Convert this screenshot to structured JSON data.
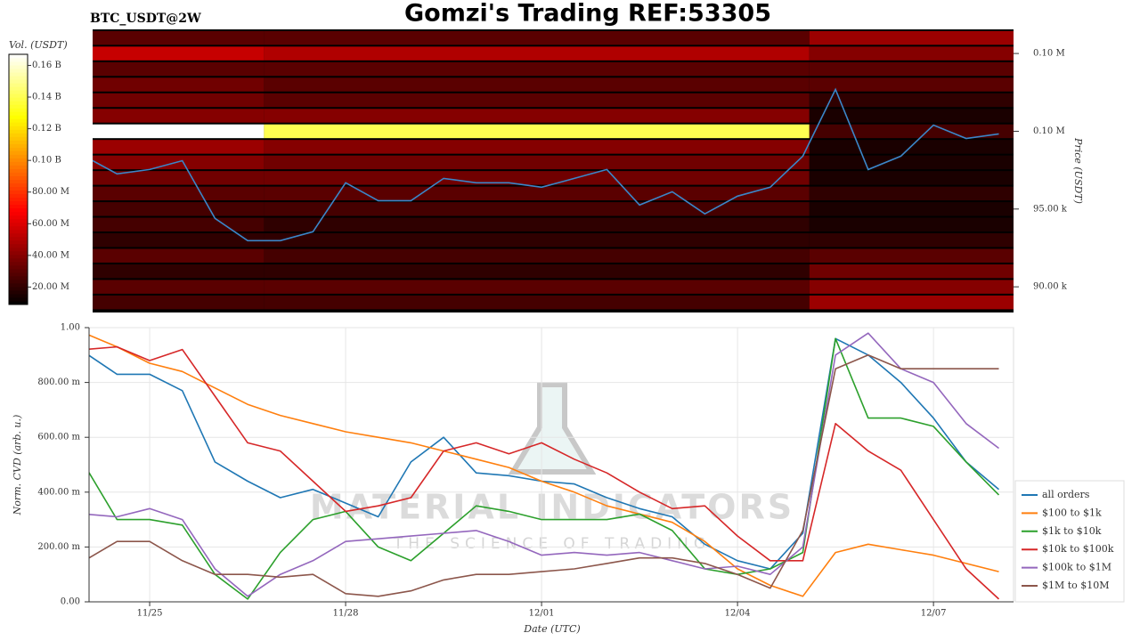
{
  "header": {
    "title": "Gomzi's Trading REF:53305",
    "symbol": "BTC_USDT@2W"
  },
  "watermark": {
    "name": "MATERIAL INDICATORS",
    "tagline": "THE SCIENCE OF TRADING"
  },
  "chart_data": [
    {
      "type": "heatmap",
      "y_label": "Price (USDT)",
      "colorbar_label": "Vol. (USDT)",
      "categories": [
        null,
        null,
        null,
        null,
        null,
        null,
        null,
        null,
        null,
        null,
        null,
        null,
        null,
        null,
        null,
        null,
        null,
        null,
        null,
        null,
        null,
        null,
        null,
        null,
        null,
        null,
        null,
        null,
        null
      ],
      "ylim": [
        88350,
        106550
      ],
      "yticks": [
        {
          "value": 90000,
          "label": "90.00 k"
        },
        {
          "value": 95000,
          "label": "95.00 k"
        },
        {
          "value": 100000,
          "label": "0.10 M"
        },
        {
          "value": 105000,
          "label": "0.10 M"
        }
      ],
      "y_bins": [
        88500,
        89500,
        90500,
        91500,
        92500,
        93500,
        94500,
        95500,
        96500,
        97500,
        98500,
        99500,
        100500,
        101500,
        102500,
        103500,
        104500,
        105500,
        106500
      ],
      "x_bins": [
        0,
        5.5,
        22.2,
        28.5
      ],
      "z": [
        [
          25000000,
          25000000,
          45000000
        ],
        [
          30000000,
          30000000,
          40000000
        ],
        [
          20000000,
          20000000,
          35000000
        ],
        [
          30000000,
          25000000,
          30000000
        ],
        [
          20000000,
          20000000,
          20000000
        ],
        [
          25000000,
          20000000,
          15000000
        ],
        [
          25000000,
          25000000,
          15000000
        ],
        [
          30000000,
          30000000,
          20000000
        ],
        [
          35000000,
          35000000,
          15000000
        ],
        [
          40000000,
          35000000,
          15000000
        ],
        [
          45000000,
          40000000,
          15000000
        ],
        [
          167000000,
          140000000,
          25000000
        ],
        [
          40000000,
          40000000,
          15000000
        ],
        [
          35000000,
          30000000,
          20000000
        ],
        [
          35000000,
          30000000,
          30000000
        ],
        [
          30000000,
          30000000,
          30000000
        ],
        [
          55000000,
          50000000,
          40000000
        ],
        [
          30000000,
          30000000,
          45000000
        ]
      ],
      "zlim": [
        9000000,
        167000000
      ],
      "zticks": [
        {
          "value": 20000000,
          "label": "20.00 M"
        },
        {
          "value": 40000000,
          "label": "40.00 M"
        },
        {
          "value": 60000000,
          "label": "60.00 M"
        },
        {
          "value": 80000000,
          "label": "80.00 M"
        },
        {
          "value": 100000000,
          "label": "0.10 B"
        },
        {
          "value": 120000000,
          "label": "0.12 B"
        },
        {
          "value": 140000000,
          "label": "0.14 B"
        },
        {
          "value": 160000000,
          "label": "0.16 B"
        }
      ],
      "line": {
        "color": "#3b86c8",
        "values": [
          98400,
          97260,
          97540,
          98110,
          94400,
          92970,
          92970,
          93540,
          96690,
          95540,
          95540,
          96970,
          96690,
          96690,
          96400,
          96970,
          97540,
          95260,
          96110,
          94690,
          95830,
          96400,
          98400,
          102690,
          97540,
          98400,
          100400,
          99540,
          99830
        ]
      }
    },
    {
      "type": "line",
      "y_label": "Norm. CVD (arb. u.)",
      "x_label": "Date (UTC)",
      "categories": [
        null,
        null,
        "11/25",
        null,
        null,
        null,
        null,
        null,
        "11/28",
        null,
        null,
        null,
        null,
        null,
        "12/01",
        null,
        null,
        null,
        null,
        null,
        "12/04",
        null,
        null,
        null,
        null,
        null,
        "12/07",
        null,
        null
      ],
      "ylim": [
        0,
        1
      ],
      "yticks": [
        {
          "value": 0,
          "label": "0.00"
        },
        {
          "value": 0.2,
          "label": "200.00 m"
        },
        {
          "value": 0.4,
          "label": "400.00 m"
        },
        {
          "value": 0.6,
          "label": "600.00 m"
        },
        {
          "value": 0.8,
          "label": "800.00 m"
        },
        {
          "value": 1,
          "label": "1.00"
        }
      ],
      "grid": true,
      "legend": "right",
      "series": [
        {
          "name": "all orders",
          "color": "#1f77b4",
          "values": [
            0.91,
            0.83,
            0.83,
            0.77,
            0.51,
            0.44,
            0.38,
            0.41,
            0.36,
            0.31,
            0.51,
            0.6,
            0.47,
            0.46,
            0.44,
            0.43,
            0.38,
            0.34,
            0.31,
            0.21,
            0.15,
            0.12,
            0.25,
            0.96,
            0.9,
            0.8,
            0.67,
            0.51,
            0.41
          ]
        },
        {
          "name": "$100 to $1k",
          "color": "#ff7f0e",
          "values": [
            0.98,
            0.93,
            0.87,
            0.84,
            0.78,
            0.72,
            0.68,
            0.65,
            0.62,
            0.6,
            0.58,
            0.55,
            0.52,
            0.49,
            0.44,
            0.4,
            0.35,
            0.32,
            0.29,
            0.22,
            0.12,
            0.06,
            0.02,
            0.18,
            0.21,
            0.19,
            0.17,
            0.14,
            0.11
          ]
        },
        {
          "name": "$1k to $10k",
          "color": "#2ca02c",
          "values": [
            0.5,
            0.3,
            0.3,
            0.28,
            0.1,
            0.01,
            0.18,
            0.3,
            0.33,
            0.2,
            0.15,
            0.25,
            0.35,
            0.33,
            0.3,
            0.3,
            0.3,
            0.32,
            0.26,
            0.12,
            0.1,
            0.12,
            0.18,
            0.96,
            0.67,
            0.67,
            0.64,
            0.51,
            0.39
          ]
        },
        {
          "name": "$10k to $100k",
          "color": "#d62728",
          "values": [
            0.92,
            0.93,
            0.88,
            0.92,
            0.75,
            0.58,
            0.55,
            0.44,
            0.33,
            0.35,
            0.38,
            0.55,
            0.58,
            0.54,
            0.58,
            0.52,
            0.47,
            0.4,
            0.34,
            0.35,
            0.24,
            0.15,
            0.15,
            0.65,
            0.55,
            0.48,
            0.3,
            0.12,
            0.01
          ]
        },
        {
          "name": "$100k to $1M",
          "color": "#9467bd",
          "values": [
            0.32,
            0.31,
            0.34,
            0.3,
            0.12,
            0.02,
            0.1,
            0.15,
            0.22,
            0.23,
            0.24,
            0.25,
            0.26,
            0.22,
            0.17,
            0.18,
            0.17,
            0.18,
            0.15,
            0.12,
            0.13,
            0.1,
            0.2,
            0.9,
            0.98,
            0.85,
            0.8,
            0.65,
            0.56
          ]
        },
        {
          "name": "$1M to $10M",
          "color": "#8c564b",
          "values": [
            0.15,
            0.22,
            0.22,
            0.15,
            0.1,
            0.1,
            0.09,
            0.1,
            0.03,
            0.02,
            0.04,
            0.08,
            0.1,
            0.1,
            0.11,
            0.12,
            0.14,
            0.16,
            0.16,
            0.14,
            0.1,
            0.05,
            0.26,
            0.85,
            0.9,
            0.85,
            0.85,
            0.85,
            0.85
          ]
        }
      ]
    }
  ]
}
